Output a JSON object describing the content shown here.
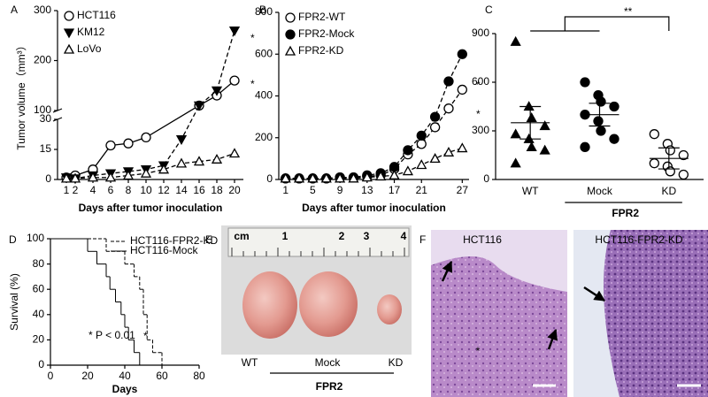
{
  "panel_labels": [
    "A",
    "B",
    "C",
    "D",
    "E",
    "F"
  ],
  "chart_data": [
    {
      "type": "line",
      "xlabel": "Days after tumor inoculation",
      "ylabel": "Tumor volume（mm³）",
      "xlim": [
        0,
        21
      ],
      "xticks": [
        1,
        2,
        4,
        6,
        8,
        10,
        12,
        14,
        16,
        18,
        20
      ],
      "ylim": [
        0,
        300
      ],
      "yticks": [
        0,
        15,
        30,
        100,
        200,
        300
      ],
      "y_break": [
        30,
        100
      ],
      "legend": "upper left",
      "series": [
        {
          "name": "HCT116",
          "color": "#000000",
          "marker": "open-circle",
          "dash": false,
          "x": [
            1,
            2,
            4,
            6,
            8,
            10,
            16,
            18,
            20
          ],
          "values": [
            1,
            2,
            5,
            17,
            18,
            21,
            110,
            130,
            160
          ]
        },
        {
          "name": "KM12",
          "color": "#000000",
          "marker": "filled-triangle-down",
          "dash": true,
          "x": [
            1,
            2,
            4,
            6,
            8,
            10,
            12,
            14,
            16,
            18,
            20
          ],
          "values": [
            1,
            0.5,
            2,
            3,
            4,
            5,
            7,
            20,
            110,
            140,
            260
          ]
        },
        {
          "name": "LoVo",
          "color": "#000000",
          "marker": "open-triangle",
          "dash": true,
          "x": [
            1,
            2,
            4,
            6,
            8,
            10,
            12,
            14,
            16,
            18,
            20
          ],
          "values": [
            0.5,
            0.5,
            1,
            1,
            2,
            3,
            5,
            8,
            9,
            10,
            13
          ]
        }
      ],
      "annotations": [
        "*",
        "*"
      ]
    },
    {
      "type": "line",
      "xlabel": "Days after tumor inoculation",
      "xlim": [
        0,
        28
      ],
      "xticks": [
        1,
        5,
        9,
        13,
        17,
        21,
        27
      ],
      "ylim": [
        0,
        800
      ],
      "yticks": [
        0,
        200,
        400,
        600,
        800
      ],
      "legend": "upper left",
      "series": [
        {
          "name": "FPR2-WT",
          "color": "#000000",
          "marker": "open-circle",
          "dash": true,
          "x": [
            1,
            3,
            5,
            7,
            9,
            11,
            13,
            15,
            17,
            19,
            21,
            23,
            25,
            27
          ],
          "values": [
            5,
            5,
            5,
            5,
            10,
            10,
            15,
            20,
            50,
            120,
            170,
            250,
            340,
            430
          ]
        },
        {
          "name": "FPR2-Mock",
          "color": "#000000",
          "marker": "filled-circle",
          "dash": true,
          "x": [
            1,
            3,
            5,
            7,
            9,
            11,
            13,
            15,
            17,
            19,
            21,
            23,
            25,
            27
          ],
          "values": [
            5,
            5,
            5,
            5,
            10,
            10,
            20,
            30,
            60,
            140,
            210,
            300,
            470,
            600
          ]
        },
        {
          "name": "FPR2-KD",
          "color": "#000000",
          "marker": "open-triangle",
          "dash": true,
          "x": [
            1,
            3,
            5,
            7,
            9,
            11,
            13,
            15,
            17,
            19,
            21,
            23,
            25,
            27
          ],
          "values": [
            5,
            5,
            5,
            5,
            5,
            5,
            10,
            15,
            20,
            40,
            70,
            100,
            130,
            150
          ]
        }
      ],
      "annotations": [
        "*",
        "*"
      ]
    },
    {
      "type": "dot",
      "categories": [
        "WT",
        "Mock",
        "KD"
      ],
      "ylim": [
        0,
        900
      ],
      "yticks": [
        0,
        300,
        600,
        900
      ],
      "markers": [
        "filled-triangle",
        "filled-circle",
        "open-circle"
      ],
      "color": "#000000",
      "values": [
        [
          850,
          450,
          380,
          330,
          280,
          250,
          200,
          180,
          100
        ],
        [
          600,
          520,
          480,
          450,
          400,
          360,
          300,
          250,
          200
        ],
        [
          280,
          220,
          180,
          150,
          100,
          80,
          50,
          30
        ]
      ],
      "means": [
        350,
        400,
        130
      ],
      "errors": [
        100,
        70,
        65
      ],
      "group_label": "FPR2",
      "annotations": [
        "**"
      ]
    },
    {
      "type": "step",
      "xlabel": "Days",
      "ylabel": "Survival (%)",
      "xlim": [
        0,
        80
      ],
      "xticks": [
        0,
        20,
        40,
        60,
        80
      ],
      "ylim": [
        0,
        100
      ],
      "yticks": [
        0,
        20,
        40,
        60,
        80,
        100
      ],
      "legend": "upper right",
      "series": [
        {
          "name": "HCT116-FPR2-KD",
          "color": "#000000",
          "dash": true,
          "x": [
            0,
            30,
            40,
            45,
            48,
            50,
            52,
            55,
            60
          ],
          "values": [
            100,
            90,
            80,
            70,
            60,
            40,
            20,
            10,
            0
          ]
        },
        {
          "name": "HCT116-Mock",
          "color": "#000000",
          "dash": false,
          "x": [
            0,
            20,
            25,
            30,
            32,
            35,
            38,
            40,
            42,
            45,
            48
          ],
          "values": [
            100,
            90,
            80,
            70,
            60,
            50,
            40,
            30,
            20,
            10,
            0
          ]
        }
      ],
      "annotations": [
        "* P < 0.01",
        "*"
      ]
    }
  ],
  "photo_e": {
    "ruler_labels": [
      "cm",
      "1",
      "2",
      "3",
      "4"
    ],
    "samples": [
      "WT",
      "Mock",
      "KD"
    ],
    "group_label": "FPR2"
  },
  "photo_f": {
    "panels": [
      "HCT116",
      "HCT116-FPR2-KD"
    ],
    "annotation": "*"
  }
}
